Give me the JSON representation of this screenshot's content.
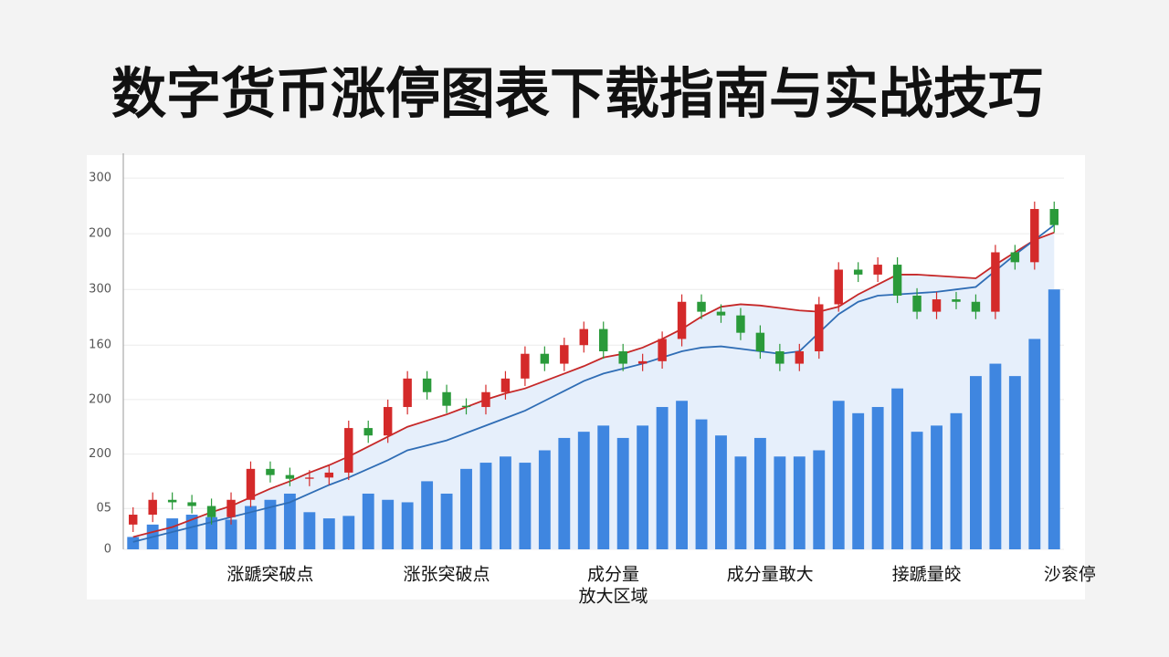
{
  "title": "数字货币涨停图表下载指南与实战技巧",
  "chart_data": {
    "type": "candlestick",
    "open": [
      20,
      28,
      40,
      38,
      35,
      26,
      40,
      65,
      60,
      57,
      58,
      62,
      98,
      92,
      115,
      138,
      127,
      116,
      115,
      127,
      138,
      158,
      150,
      165,
      178,
      160,
      150,
      152,
      170,
      200,
      192,
      189,
      175,
      160,
      150,
      160,
      198,
      226,
      222,
      230,
      205,
      192,
      202,
      200,
      192,
      240,
      232,
      275
    ],
    "high": [
      34,
      46,
      46,
      44,
      41,
      46,
      71,
      71,
      66,
      64,
      68,
      104,
      104,
      121,
      144,
      144,
      133,
      122,
      133,
      144,
      164,
      164,
      171,
      184,
      184,
      166,
      158,
      176,
      206,
      206,
      198,
      195,
      181,
      166,
      166,
      204,
      232,
      232,
      236,
      236,
      211,
      208,
      208,
      206,
      246,
      246,
      281,
      281
    ],
    "low": [
      14,
      22,
      32,
      29,
      20,
      20,
      34,
      54,
      51,
      51,
      52,
      56,
      86,
      86,
      109,
      121,
      110,
      109,
      109,
      121,
      132,
      144,
      144,
      159,
      154,
      144,
      144,
      146,
      164,
      186,
      183,
      169,
      154,
      144,
      144,
      154,
      192,
      216,
      216,
      199,
      186,
      186,
      194,
      186,
      186,
      226,
      226,
      256
    ],
    "close": [
      28,
      40,
      38,
      35,
      26,
      40,
      65,
      60,
      57,
      58,
      62,
      98,
      92,
      115,
      138,
      127,
      116,
      115,
      127,
      138,
      158,
      150,
      165,
      178,
      160,
      150,
      152,
      170,
      200,
      192,
      189,
      175,
      160,
      150,
      160,
      198,
      226,
      222,
      230,
      205,
      192,
      202,
      200,
      192,
      240,
      232,
      275,
      262
    ],
    "volume": [
      10,
      20,
      25,
      28,
      26,
      24,
      35,
      40,
      45,
      30,
      25,
      27,
      45,
      40,
      38,
      55,
      45,
      65,
      70,
      75,
      70,
      80,
      90,
      95,
      100,
      90,
      100,
      115,
      120,
      105,
      92,
      75,
      90,
      75,
      75,
      80,
      120,
      110,
      115,
      130,
      95,
      100,
      110,
      140,
      150,
      140,
      170,
      210
    ],
    "up_color": "#d42a2a",
    "down_color": "#2a9a3a",
    "volume_color": "#3f86e0",
    "series": [
      {
        "color": "#c62828",
        "values": [
          10,
          14,
          18,
          24,
          30,
          35,
          42,
          49,
          55,
          62,
          68,
          75,
          83,
          91,
          99,
          104,
          109,
          115,
          121,
          126,
          130,
          136,
          142,
          148,
          155,
          158,
          163,
          170,
          178,
          188,
          196,
          198,
          197,
          195,
          193,
          192,
          196,
          206,
          214,
          222,
          222,
          221,
          220,
          219,
          230,
          240,
          250,
          256
        ]
      },
      {
        "color": "#2f6db5",
        "values": [
          6,
          10,
          14,
          18,
          22,
          26,
          30,
          34,
          38,
          45,
          52,
          58,
          65,
          72,
          80,
          84,
          88,
          94,
          100,
          106,
          112,
          120,
          128,
          136,
          142,
          146,
          150,
          155,
          160,
          163,
          164,
          162,
          160,
          158,
          160,
          175,
          190,
          200,
          205,
          206,
          207,
          208,
          210,
          212,
          225,
          238,
          250,
          262
        ]
      }
    ],
    "ylim": [
      0,
      320
    ],
    "yticks": [
      0,
      {
        "value": 33,
        "label": "05"
      },
      {
        "value": 77,
        "label": "200"
      },
      {
        "value": 121,
        "label": "200"
      },
      {
        "value": 165,
        "label": "160"
      },
      {
        "value": 210,
        "label": "300"
      },
      {
        "value": 255,
        "label": "200"
      },
      300
    ],
    "grid": true,
    "annotations": [
      {
        "x": 7,
        "lines": [
          "涨蹏突破点"
        ]
      },
      {
        "x": 16,
        "lines": [
          "涨张突破点"
        ]
      },
      {
        "x": 24.5,
        "lines": [
          "成分量",
          "放大区域"
        ]
      },
      {
        "x": 32.5,
        "lines": [
          "成分量敢大"
        ]
      },
      {
        "x": 40.5,
        "lines": [
          "接蹏量皎"
        ]
      },
      {
        "x": 47.8,
        "lines": [
          "沙衮停"
        ]
      }
    ]
  }
}
